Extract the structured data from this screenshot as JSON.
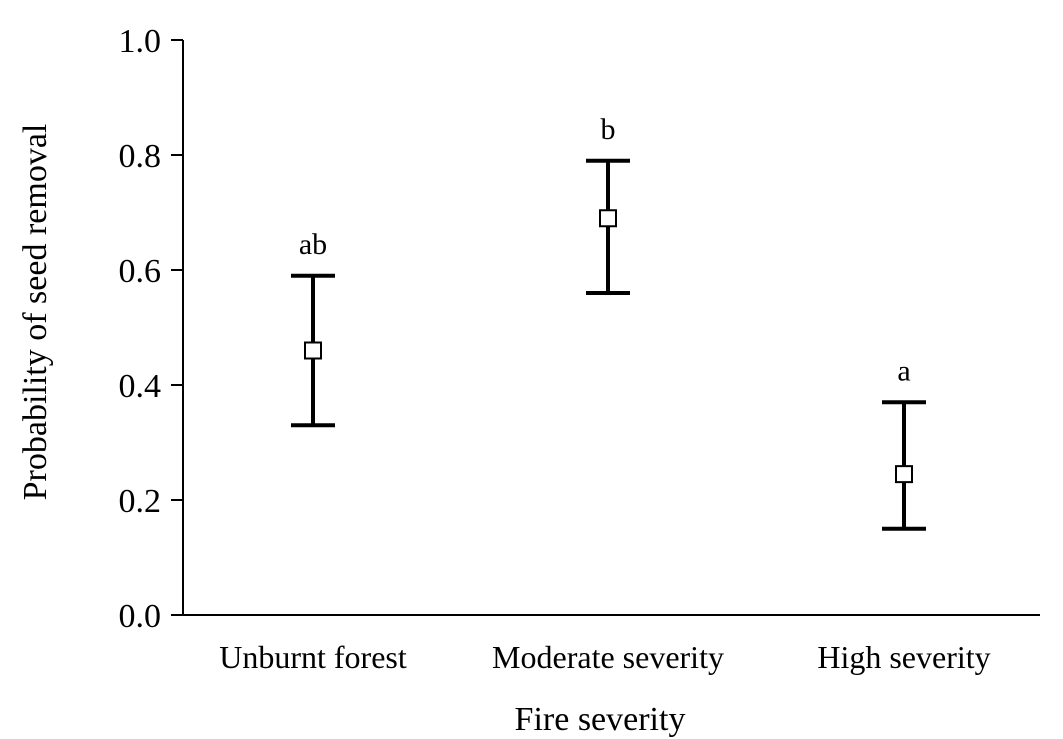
{
  "chart_data": {
    "type": "scatter",
    "xlabel": "Fire severity",
    "ylabel": "Probability of seed removal",
    "ylim": [
      0.0,
      1.0
    ],
    "yticks": [
      "0.0",
      "0.2",
      "0.4",
      "0.6",
      "0.8",
      "1.0"
    ],
    "ytick_values": [
      0.0,
      0.2,
      0.4,
      0.6,
      0.8,
      1.0
    ],
    "categories": [
      "Unburnt forest",
      "Moderate severity",
      "High severity"
    ],
    "points": [
      {
        "category": "Unburnt forest",
        "mean": 0.46,
        "lower": 0.33,
        "upper": 0.59,
        "label": "ab"
      },
      {
        "category": "Moderate severity",
        "mean": 0.69,
        "lower": 0.56,
        "upper": 0.79,
        "label": "b"
      },
      {
        "category": "High severity",
        "mean": 0.245,
        "lower": 0.15,
        "upper": 0.37,
        "label": "a"
      }
    ],
    "marker": "open-square",
    "grid": false,
    "legend": "none"
  }
}
